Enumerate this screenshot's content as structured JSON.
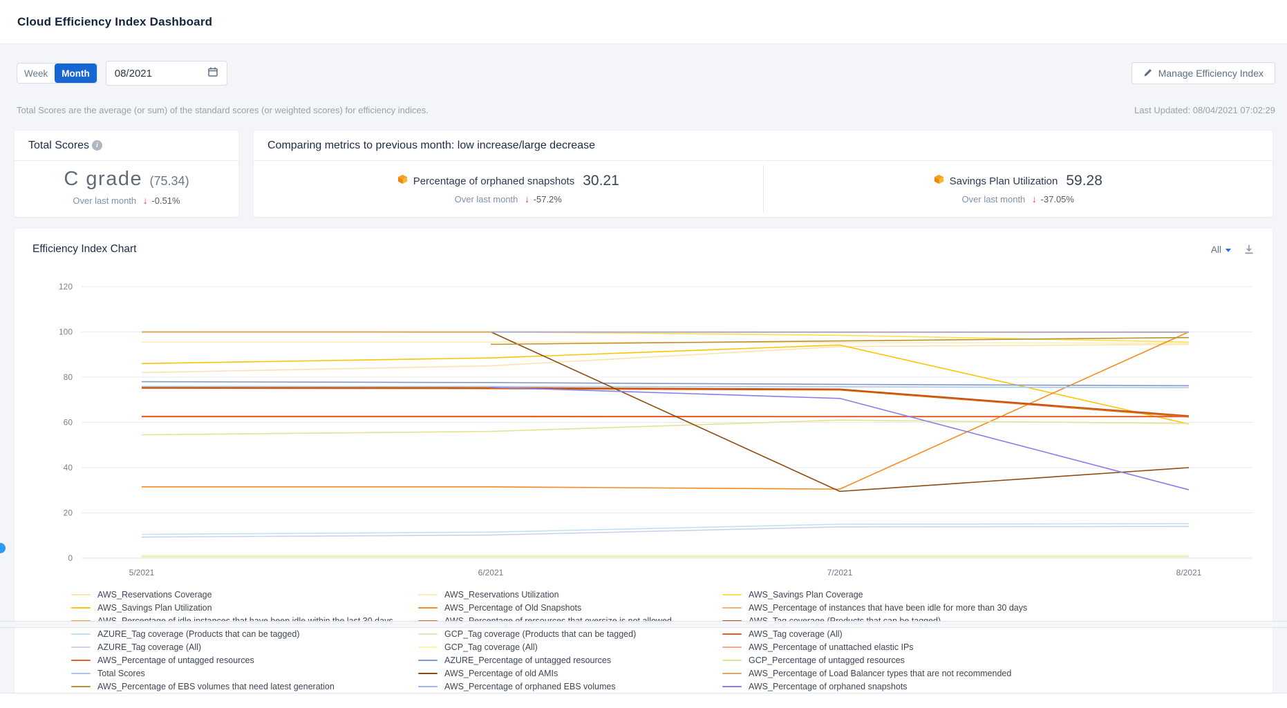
{
  "header": {
    "title": "Cloud Efficiency Index Dashboard"
  },
  "controls": {
    "week_label": "Week",
    "month_label": "Month",
    "date_value": "08/2021",
    "manage_button": "Manage Efficiency Index"
  },
  "info": {
    "caption": "Total Scores are the average (or sum) of the standard scores (or weighted scores) for efficiency indices.",
    "last_updated": "Last Updated: 08/04/2021 07:02:29"
  },
  "total_scores": {
    "title": "Total Scores",
    "grade": "C grade",
    "score": "(75.34)",
    "trend_label": "Over last month",
    "trend_arrow": "↓",
    "trend_value": "-0.51%"
  },
  "comparison": {
    "title": "Comparing metrics to previous month: low increase/large decrease",
    "metrics": [
      {
        "provider_icon": "aws-cube-icon",
        "name": "Percentage of orphaned snapshots",
        "value": "30.21",
        "trend_label": "Over last month",
        "trend_arrow": "↓",
        "trend_value": "-57.2%"
      },
      {
        "provider_icon": "aws-cube-icon",
        "name": "Savings Plan Utilization",
        "value": "59.28",
        "trend_label": "Over last month",
        "trend_arrow": "↓",
        "trend_value": "-37.05%"
      }
    ]
  },
  "chart": {
    "title": "Efficiency Index Chart",
    "filter_label": "All",
    "icons": [
      "dropdown-caret-icon",
      "download-icon"
    ]
  },
  "icons": {
    "toolbar": [
      "pencil-icon",
      "calendar-icon",
      "info-icon"
    ],
    "trend": "red-down-arrow"
  },
  "colors": {
    "accent_blue": "#1766d1",
    "negative_red": "#e04438",
    "grid": "#e8eaed"
  },
  "chart_data": {
    "type": "line",
    "x": [
      "5/2021",
      "6/2021",
      "7/2021",
      "8/2021"
    ],
    "ylim": [
      0,
      120
    ],
    "yticks": [
      0,
      20,
      40,
      60,
      80,
      100,
      120
    ],
    "grid": true,
    "legend_position": "bottom",
    "series": [
      {
        "name": "AWS_Reservations Coverage",
        "color": "#FBE3AD",
        "values": [
          82,
          85,
          93.5,
          94.5
        ]
      },
      {
        "name": "AWS_Reservations Utilization",
        "color": "#FCEBB6",
        "values": [
          95.5,
          95.5,
          95.3,
          95
        ]
      },
      {
        "name": "AWS_Savings Plan Coverage",
        "color": "#FFE14D",
        "values": [
          100,
          100,
          98.5,
          95.5
        ]
      },
      {
        "name": "AWS_Savings Plan Utilization",
        "color": "#FFC400",
        "values": [
          86,
          88.5,
          94.2,
          59.28
        ]
      },
      {
        "name": "AWS_Percentage of Old Snapshots",
        "color": "#F78A1E",
        "values": [
          31.5,
          31.5,
          30.5,
          100
        ]
      },
      {
        "name": "AWS_Percentage of instances that have been idle for more than 30 days",
        "color": "#F6B16B",
        "values": [
          100,
          100,
          100,
          99.8
        ]
      },
      {
        "name": "AWS_Percentage of idle instances that have been idle within the last 30 days",
        "color": "#F59B30",
        "values": [
          100,
          100,
          99.9,
          100
        ]
      },
      {
        "name": "AWS_Percentage of rersources that oversize is not allowed",
        "color": "#DD6910",
        "values": [
          75.1,
          74.9,
          74.3,
          62.4
        ]
      },
      {
        "name": "AWS_Tag coverage (Products that can be tagged)",
        "color": "#C24C0C",
        "values": [
          75.4,
          75.3,
          74.7,
          62.9
        ]
      },
      {
        "name": "AZURE_Tag coverage (Products that can be tagged)",
        "color": "#BFE2F2",
        "values": [
          10.5,
          11.5,
          15,
          15.2
        ]
      },
      {
        "name": "GCP_Tag coverage (Products that can be tagged)",
        "color": "#D8EDBB",
        "values": [
          0.6,
          0.6,
          0.6,
          0.6
        ]
      },
      {
        "name": "AWS_Tag coverage (All)",
        "color": "#E8611C",
        "values": [
          62.5,
          62.5,
          62.5,
          62.5
        ]
      },
      {
        "name": "AZURE_Tag coverage (All)",
        "color": "#CBD2EA",
        "values": [
          9.3,
          10.2,
          13.8,
          14
        ]
      },
      {
        "name": "GCP_Tag coverage (All)",
        "color": "#F8F3A6",
        "values": [
          1.2,
          1.2,
          1.2,
          1.2
        ]
      },
      {
        "name": "AWS_Percentage of unattached elastic IPs",
        "color": "#F4A98E",
        "values": [
          99.9,
          99.9,
          99.8,
          99.9
        ]
      },
      {
        "name": "AWS_Percentage of untagged resources",
        "color": "#EA5D2D",
        "values": [
          62.7,
          62.7,
          62.6,
          62.6
        ]
      },
      {
        "name": "AZURE_Percentage of untagged resources",
        "color": "#7E99CC",
        "values": [
          78,
          77.6,
          76.8,
          76.2
        ]
      },
      {
        "name": "GCP_Percentage of untagged resources",
        "color": "#E6E291",
        "values": [
          54.5,
          56,
          61,
          59.5
        ]
      },
      {
        "name": "Total Scores",
        "color": "#ABC8E8",
        "values": [
          75.9,
          75.85,
          75.73,
          75.34
        ]
      },
      {
        "name": "AWS_Percentage of old AMIs",
        "color": "#8C4A10",
        "values": [
          null,
          100,
          29.5,
          40
        ]
      },
      {
        "name": "AWS_Percentage of Load Balancer types that are not recommended",
        "color": "#DCA763",
        "values": [
          100,
          99.9,
          99.9,
          99.8
        ]
      },
      {
        "name": "AWS_Percentage of EBS volumes that need latest generation",
        "color": "#BE9130",
        "values": [
          null,
          94.5,
          96,
          97.5
        ]
      },
      {
        "name": "AWS_Percentage of orphaned EBS volumes",
        "color": "#A2B3F4",
        "values": [
          null,
          100,
          100,
          100
        ]
      },
      {
        "name": "AWS_Percentage of orphaned snapshots",
        "color": "#8B7CEC",
        "values": [
          null,
          75.5,
          70.6,
          30.21
        ]
      }
    ]
  }
}
